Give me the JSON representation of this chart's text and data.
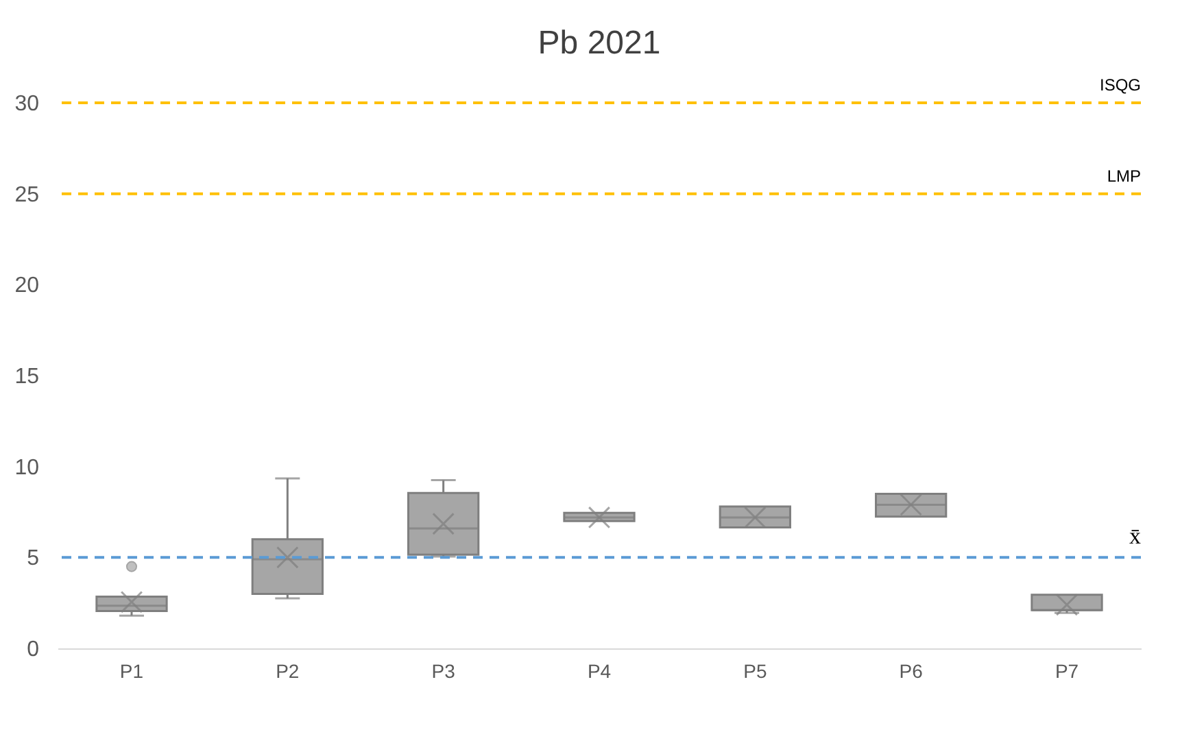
{
  "chart_data": {
    "type": "box",
    "title": "Pb 2021",
    "categories": [
      "P1",
      "P2",
      "P3",
      "P4",
      "P5",
      "P6",
      "P7"
    ],
    "series": [
      {
        "color": "#a6a6a6",
        "boxes": [
          {
            "low": 1.8,
            "q1": 2.05,
            "median": 2.35,
            "q3": 2.85,
            "high": 2.85,
            "mean": 2.55,
            "outliers": [
              4.5
            ]
          },
          {
            "low": 2.75,
            "q1": 3.0,
            "median": 4.9,
            "q3": 6.0,
            "high": 9.35,
            "mean": 5.0
          },
          {
            "low": 5.05,
            "q1": 5.15,
            "median": 6.6,
            "q3": 8.55,
            "high": 9.25,
            "mean": 6.85
          },
          {
            "low": 7.0,
            "q1": 7.0,
            "median": 7.2,
            "q3": 7.45,
            "high": 7.45,
            "mean": 7.2
          },
          {
            "low": 6.65,
            "q1": 6.65,
            "median": 7.2,
            "q3": 7.8,
            "high": 7.8,
            "mean": 7.2
          },
          {
            "low": 7.25,
            "q1": 7.25,
            "median": 7.9,
            "q3": 8.5,
            "high": 8.5,
            "mean": 7.9
          },
          {
            "low": 1.95,
            "q1": 2.1,
            "median": 2.1,
            "q3": 2.95,
            "high": 2.95,
            "mean": 2.4
          }
        ]
      }
    ],
    "ylim": [
      0,
      30
    ],
    "yticks": [
      0,
      5,
      10,
      15,
      20,
      25,
      30
    ],
    "ref_lines": [
      {
        "axis": "y",
        "value": 30,
        "label": "ISQG",
        "color": "#ffc000",
        "line_style": "dashed"
      },
      {
        "axis": "y",
        "value": 25,
        "label": "LMP",
        "color": "#ffc000",
        "line_style": "dashed"
      },
      {
        "axis": "y",
        "value": 5,
        "label": "x̄",
        "color": "#5b9bd5",
        "line_style": "dashed"
      }
    ],
    "grid": false
  }
}
